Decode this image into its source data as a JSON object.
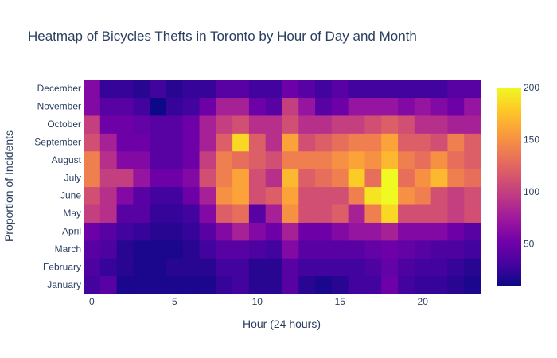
{
  "chart_data": {
    "type": "heatmap",
    "title": "Heatmap of Bicycles Thefts in Toronto by Hour of Day and Month",
    "xlabel": "Hour (24 hours)",
    "ylabel": "Proportion of Incidents",
    "x": [
      0,
      1,
      2,
      3,
      4,
      5,
      6,
      7,
      8,
      9,
      10,
      11,
      12,
      13,
      14,
      15,
      16,
      17,
      18,
      19,
      20,
      21,
      22,
      23
    ],
    "x_tick_values": [
      0,
      5,
      10,
      15,
      20
    ],
    "x_tick_labels": [
      "0",
      "5",
      "10",
      "15",
      "20"
    ],
    "y": [
      "January",
      "February",
      "March",
      "April",
      "May",
      "June",
      "July",
      "August",
      "September",
      "October",
      "November",
      "December"
    ],
    "z": [
      [
        30,
        40,
        15,
        15,
        15,
        15,
        15,
        15,
        25,
        30,
        20,
        20,
        40,
        20,
        15,
        20,
        30,
        30,
        50,
        30,
        25,
        25,
        20,
        15
      ],
      [
        35,
        25,
        20,
        15,
        15,
        20,
        20,
        20,
        30,
        30,
        20,
        20,
        40,
        30,
        30,
        30,
        30,
        35,
        45,
        35,
        30,
        30,
        25,
        20
      ],
      [
        40,
        35,
        20,
        15,
        15,
        15,
        20,
        30,
        40,
        40,
        35,
        30,
        60,
        40,
        40,
        40,
        40,
        45,
        50,
        45,
        40,
        35,
        35,
        30
      ],
      [
        50,
        40,
        30,
        25,
        20,
        20,
        25,
        40,
        60,
        80,
        60,
        50,
        80,
        50,
        50,
        60,
        70,
        70,
        80,
        60,
        60,
        60,
        50,
        40
      ],
      [
        100,
        90,
        40,
        40,
        25,
        25,
        30,
        60,
        120,
        130,
        40,
        80,
        150,
        110,
        110,
        120,
        80,
        140,
        185,
        110,
        110,
        110,
        100,
        110
      ],
      [
        110,
        90,
        60,
        40,
        30,
        30,
        50,
        80,
        150,
        160,
        110,
        120,
        160,
        110,
        110,
        110,
        140,
        190,
        200,
        150,
        140,
        110,
        100,
        110
      ],
      [
        140,
        100,
        100,
        70,
        50,
        50,
        60,
        110,
        140,
        160,
        110,
        90,
        170,
        120,
        130,
        140,
        180,
        130,
        200,
        130,
        150,
        170,
        140,
        130
      ],
      [
        140,
        90,
        60,
        60,
        40,
        40,
        50,
        100,
        140,
        130,
        120,
        110,
        140,
        140,
        140,
        150,
        160,
        150,
        170,
        140,
        130,
        150,
        130,
        120
      ],
      [
        110,
        80,
        50,
        50,
        40,
        40,
        50,
        80,
        120,
        185,
        120,
        90,
        160,
        110,
        120,
        130,
        140,
        140,
        160,
        120,
        120,
        110,
        140,
        120
      ],
      [
        100,
        50,
        50,
        45,
        40,
        40,
        50,
        80,
        100,
        110,
        90,
        90,
        110,
        90,
        90,
        100,
        100,
        110,
        120,
        110,
        90,
        90,
        80,
        80
      ],
      [
        60,
        40,
        40,
        30,
        10,
        25,
        30,
        50,
        80,
        80,
        50,
        40,
        100,
        70,
        40,
        50,
        70,
        70,
        70,
        60,
        70,
        60,
        50,
        70
      ],
      [
        60,
        25,
        25,
        20,
        30,
        20,
        25,
        25,
        40,
        40,
        30,
        30,
        50,
        40,
        30,
        40,
        30,
        30,
        30,
        30,
        30,
        30,
        40,
        40
      ]
    ],
    "colorscale_name": "Plasma",
    "colorscale": [
      [
        0.0,
        "#0d0887"
      ],
      [
        0.111,
        "#46039f"
      ],
      [
        0.222,
        "#7201a8"
      ],
      [
        0.333,
        "#9c179e"
      ],
      [
        0.444,
        "#bd3786"
      ],
      [
        0.556,
        "#d8576b"
      ],
      [
        0.667,
        "#ed7953"
      ],
      [
        0.778,
        "#fb9f3a"
      ],
      [
        0.889,
        "#fdca26"
      ],
      [
        1.0,
        "#f0f921"
      ]
    ],
    "zmin": 10,
    "zmax": 200,
    "colorbar_ticks": [
      50,
      100,
      150,
      200
    ],
    "colorbar_tick_labels": [
      "50",
      "100",
      "150",
      "200"
    ]
  }
}
